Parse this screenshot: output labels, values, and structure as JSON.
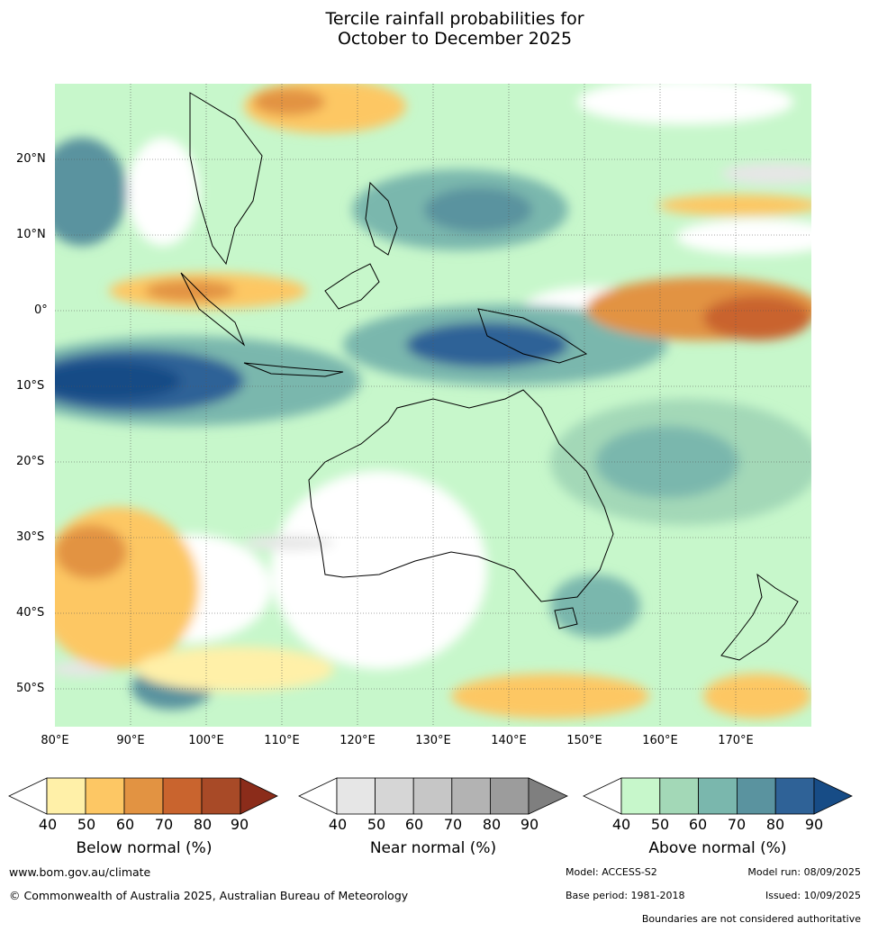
{
  "title": {
    "line1": "Tercile rainfall probabilities for",
    "line2": "October to December 2025"
  },
  "map": {
    "lat_labels": [
      "20°N",
      "10°N",
      "0°",
      "10°S",
      "20°S",
      "30°S",
      "40°S",
      "50°S"
    ],
    "lon_labels": [
      "80°E",
      "90°E",
      "100°E",
      "110°E",
      "120°E",
      "130°E",
      "140°E",
      "150°E",
      "160°E",
      "170°E"
    ]
  },
  "legends": [
    {
      "title": "Below normal (%)",
      "ticks": [
        "40",
        "50",
        "60",
        "70",
        "80",
        "90"
      ],
      "colors": [
        "#fff0a8",
        "#fdc764",
        "#e29342",
        "#c9642e",
        "#a84a27",
        "#8b2c1a"
      ]
    },
    {
      "title": "Near normal (%)",
      "ticks": [
        "40",
        "50",
        "60",
        "70",
        "80",
        "90"
      ],
      "colors": [
        "#e6e6e6",
        "#d6d6d6",
        "#c6c6c6",
        "#b3b3b3",
        "#9c9c9c",
        "#7f7f7f"
      ]
    },
    {
      "title": "Above normal (%)",
      "ticks": [
        "40",
        "50",
        "60",
        "70",
        "80",
        "90"
      ],
      "colors": [
        "#c7f7cb",
        "#a3d8b7",
        "#7ab7ad",
        "#5a939f",
        "#2f6297",
        "#174c86"
      ]
    }
  ],
  "footer": {
    "url": "www.bom.gov.au/climate",
    "copyright": "© Commonwealth of Australia 2025, Australian Bureau of Meteorology",
    "model": "Model: ACCESS-S2",
    "model_run": "Model run: 08/09/2025",
    "base_period": "Base period: 1981-2018",
    "issued": "Issued: 10/09/2025",
    "disclaimer": "Boundaries are not considered authoritative"
  }
}
